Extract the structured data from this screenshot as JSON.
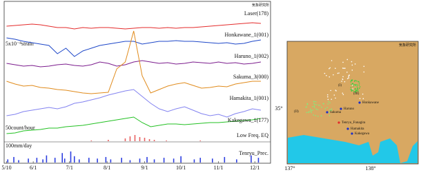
{
  "chart_data": [
    {
      "type": "line",
      "credit": "気象研究所",
      "scale_label": "5x10⁻⁸strain",
      "x": [
        130,
        137,
        144,
        151,
        158,
        165,
        172,
        179,
        186,
        193,
        200,
        207,
        214,
        221,
        228,
        235,
        242,
        249,
        256,
        263,
        270,
        277,
        284,
        291,
        298,
        305,
        312,
        319,
        326,
        333,
        340
      ],
      "xlim": [
        128,
        348
      ],
      "xticks": [
        {
          "value": 130,
          "label": "5/10"
        },
        {
          "value": 152,
          "label": "6/1"
        },
        {
          "value": 182,
          "label": "7/1"
        },
        {
          "value": 213,
          "label": "8/1"
        },
        {
          "value": 244,
          "label": "9/1"
        },
        {
          "value": 274,
          "label": "10/1"
        },
        {
          "value": 305,
          "label": "11/1"
        },
        {
          "value": 335,
          "label": "12/1"
        }
      ],
      "ylim": [
        0,
        190
      ],
      "series": [
        {
          "name": "Laser(178)",
          "color": "#e42a2a",
          "values": [
            157,
            158,
            159,
            160,
            159,
            157,
            155,
            155,
            153,
            155,
            154,
            155,
            155,
            154,
            153,
            154,
            155,
            155,
            154,
            155,
            154,
            155,
            155,
            156,
            157,
            158,
            159,
            160,
            161,
            162,
            161
          ]
        },
        {
          "name": "Honkawane_1(001)",
          "color": "#1c46c8",
          "values": [
            140,
            138,
            135,
            133,
            131,
            129,
            117,
            125,
            113,
            121,
            125,
            129,
            131,
            133,
            135,
            135,
            131,
            133,
            135,
            135,
            136,
            135,
            135,
            134,
            133,
            132,
            133,
            131,
            132,
            135,
            137
          ]
        },
        {
          "name": "Haruno_1(002)",
          "color": "#7a1a8c",
          "values": [
            103,
            101,
            99,
            100,
            98,
            99,
            101,
            102,
            100,
            99,
            101,
            105,
            103,
            99,
            101,
            105,
            107,
            105,
            103,
            104,
            102,
            103,
            105,
            104,
            103,
            105,
            103,
            104,
            102,
            103,
            105
          ]
        },
        {
          "name": "Sakuma_3(000)",
          "color": "#e08a1a",
          "values": [
            77,
            73,
            70,
            71,
            68,
            67,
            65,
            64,
            62,
            60,
            59,
            60,
            61,
            95,
            105,
            150,
            85,
            60,
            65,
            70,
            73,
            75,
            71,
            67,
            68,
            70,
            69,
            73,
            75,
            77,
            77
          ]
        },
        {
          "name": "Hamakita_1(001)",
          "color": "#8282f0",
          "values": [
            27,
            29,
            33,
            35,
            37,
            39,
            37,
            40,
            45,
            47,
            50,
            53,
            57,
            60,
            63,
            65,
            55,
            45,
            37,
            33,
            37,
            40,
            35,
            30,
            27,
            29,
            25,
            30,
            33,
            37,
            35
          ]
        },
        {
          "name": "Kakegawa_1(177)",
          "color": "#22c022",
          "values": [
            1,
            2,
            5,
            6,
            7,
            9,
            9,
            11,
            12,
            13,
            15,
            17,
            19,
            21,
            23,
            25,
            17,
            11,
            13,
            15,
            15,
            14,
            15,
            16,
            17,
            17,
            18,
            19,
            20,
            21,
            23
          ]
        }
      ]
    },
    {
      "type": "bar",
      "scale_label": "50count/hour",
      "label": "Low Freq. EQ",
      "color": "#e86060",
      "x": [
        200,
        214,
        228,
        232,
        236,
        240,
        244,
        248,
        252,
        262,
        290
      ],
      "values": [
        5,
        10,
        20,
        35,
        45,
        30,
        25,
        15,
        10,
        5,
        5
      ],
      "xlim": [
        128,
        348
      ],
      "ylim": [
        0,
        100
      ]
    },
    {
      "type": "bar",
      "scale_label": "100mm/day",
      "label": "Tenryu_Prec.",
      "color": "#2c3ee0",
      "x": [
        131,
        136,
        140,
        148,
        155,
        160,
        163,
        170,
        176,
        178,
        183,
        186,
        190,
        198,
        205,
        212,
        216,
        225,
        232,
        240,
        246,
        252,
        260,
        268,
        274,
        285,
        290,
        300,
        310,
        320,
        332,
        338
      ],
      "values": [
        20,
        35,
        15,
        25,
        30,
        20,
        45,
        30,
        60,
        25,
        70,
        40,
        20,
        30,
        25,
        35,
        20,
        30,
        15,
        25,
        35,
        20,
        30,
        25,
        40,
        20,
        30,
        25,
        35,
        20,
        45,
        30
      ],
      "xlim": [
        128,
        348
      ],
      "ylim": [
        0,
        100
      ]
    }
  ],
  "map": {
    "credit": "気象研究所",
    "lat_label": "35°",
    "lon_labels": [
      "137°",
      "138°"
    ],
    "regions": [
      "(I)",
      "(II)",
      "(III)"
    ],
    "stations": [
      "Honkawane",
      "Haruno",
      "Sakuma",
      "Tenryu_Funagira",
      "Hamakita",
      "Kakegawa"
    ]
  }
}
